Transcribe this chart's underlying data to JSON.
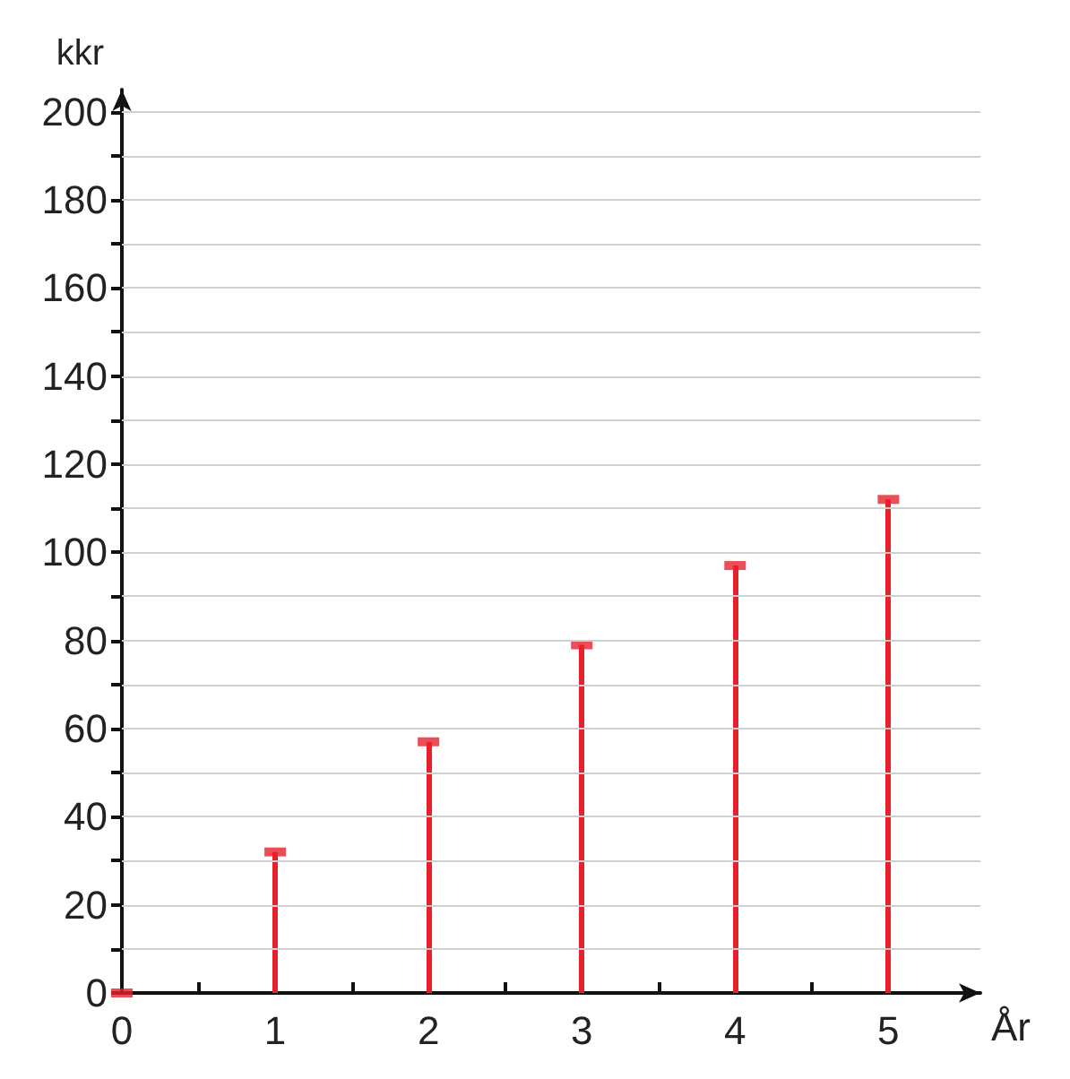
{
  "chart_data": {
    "type": "lollipop",
    "xlabel": "År",
    "ylabel": "kkr",
    "x": [
      0,
      1,
      2,
      3,
      4,
      5
    ],
    "series": [
      {
        "color": "#e8202a",
        "values": [
          0,
          32,
          57,
          79,
          97,
          112
        ]
      }
    ],
    "xlim": [
      0,
      5.6
    ],
    "xticks": [
      0,
      {
        "value": 0.5,
        "label": null
      },
      1,
      {
        "value": 1.5,
        "label": null
      },
      2,
      {
        "value": 2.5,
        "label": null
      },
      3,
      {
        "value": 3.5,
        "label": null
      },
      4,
      {
        "value": 4.5,
        "label": null
      },
      5
    ],
    "ylim": [
      0,
      205
    ],
    "yticks": [
      0,
      {
        "value": 10,
        "label": null
      },
      20,
      {
        "value": 30,
        "label": null
      },
      40,
      {
        "value": 50,
        "label": null
      },
      60,
      {
        "value": 70,
        "label": null
      },
      80,
      {
        "value": 90,
        "label": null
      },
      100,
      {
        "value": 110,
        "label": null
      },
      120,
      {
        "value": 130,
        "label": null
      },
      140,
      {
        "value": 150,
        "label": null
      },
      160,
      {
        "value": 170,
        "label": null
      },
      180,
      {
        "value": 190,
        "label": null
      },
      200
    ],
    "grid": "y"
  }
}
